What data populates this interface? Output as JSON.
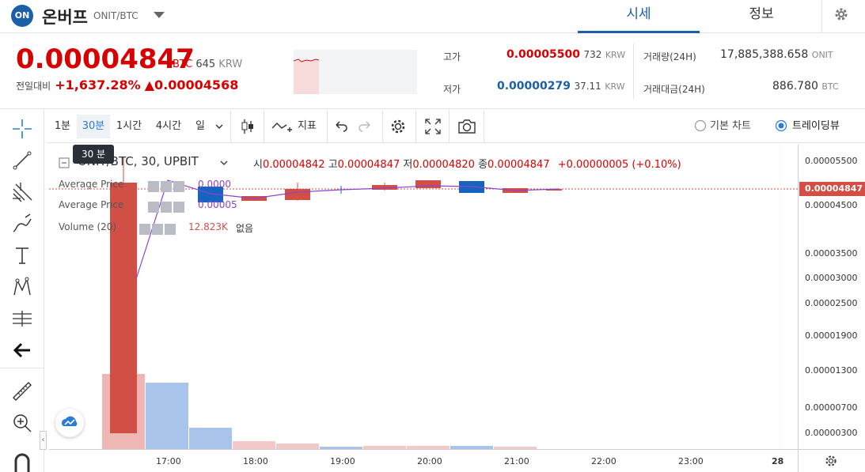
{
  "header": {
    "logo_text": "ON",
    "coin_name": "온버프",
    "pair": "ONIT/BTC",
    "tabs": [
      "시세",
      "정보"
    ]
  },
  "price": {
    "current": "0.00004847",
    "unit": "BTC",
    "krw_value": "645",
    "krw_unit": "KRW",
    "change_label": "전일대비",
    "change_pct": "+1,637.28%",
    "change_abs": "▲0.00004568",
    "high_label": "고가",
    "high": "0.00005500",
    "high_krw": "732",
    "low_label": "저가",
    "low": "0.00000279",
    "low_krw": "37.11",
    "krw_unit_small": "KRW",
    "vol_label": "거래량(24H)",
    "vol": "17,885,388.658",
    "vol_unit": "ONIT",
    "amt_label": "거래대금(24H)",
    "amt": "886.780",
    "amt_unit": "BTC"
  },
  "toolbar": {
    "intervals": [
      "1분",
      "30분",
      "1시간",
      "4시간",
      "일"
    ],
    "indicator_label": "지표",
    "chart_basic": "기본 차트",
    "chart_tv": "트레이딩뷰",
    "tooltip": "30 분"
  },
  "legend": {
    "symbol": "ONIT/BTC, 30, UPBIT",
    "o_label": "시",
    "o": "0.00004842",
    "h_label": "고",
    "h": "0.00004847",
    "l_label": "저",
    "l": "0.00004820",
    "c_label": "종",
    "c": "0.00004847",
    "chg": "+0.00000005 (+0.10%)",
    "ind1": "Average Price",
    "ind1_val": "0.0000",
    "ind2": "Average Price",
    "ind2_val": "0.00005",
    "ind3": "Volume (20)",
    "ind3_val": "12.823K",
    "ind3_extra": "없음"
  },
  "yaxis": {
    "labels": [
      "0.00005500",
      "0.00004500",
      "0.00003500",
      "0.00003000",
      "0.00002500",
      "0.00001900",
      "0.00001300",
      "0.00000700",
      "0.00000300"
    ],
    "current_tag": "0.00004847"
  },
  "xaxis": {
    "labels": [
      "17:00",
      "18:00",
      "19:00",
      "20:00",
      "21:00",
      "22:00",
      "23:00",
      "28"
    ]
  },
  "colors": {
    "up": "#d24f45",
    "down": "#1565c0",
    "accent": "#1a5fa8",
    "price_red": "#d60000"
  },
  "chart_data": {
    "type": "candlestick",
    "x": [
      "16:30",
      "17:00",
      "17:30",
      "18:00",
      "18:30",
      "19:00",
      "19:30",
      "20:00",
      "20:30",
      "21:00",
      "21:30"
    ],
    "series": [
      {
        "name": "Volume (20)",
        "values": [
          0.22,
          0.2,
          0.06,
          0.02,
          0.015,
          0.005,
          0.01,
          0.01,
          0.01,
          0.005,
          0
        ]
      }
    ]
  }
}
